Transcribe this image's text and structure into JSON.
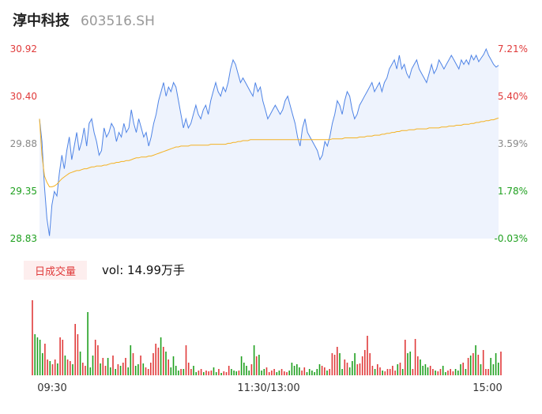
{
  "stock": {
    "name": "淳中科技",
    "code": "603516.SH"
  },
  "colors": {
    "up": "#e03a3a",
    "down": "#1fa01f",
    "neutral": "#888888",
    "price_line": "#4f84e6",
    "avg_line": "#f4b223",
    "fill": "#eef3fd"
  },
  "volume_panel": {
    "badge": "日成交量",
    "text": "vol: 14.99万手"
  },
  "chart_data": [
    {
      "type": "line",
      "name": "intraday-price",
      "y_left_ticks": [
        "30.92",
        "30.40",
        "29.88",
        "29.35",
        "28.83"
      ],
      "y_right_ticks": [
        "7.21%",
        "5.40%",
        "3.59%",
        "1.78%",
        "-0.03%"
      ],
      "ylim": [
        28.83,
        30.92
      ],
      "x_ticks": [
        "09:30",
        "11:30/13:00",
        "15:00"
      ],
      "price": [
        30.15,
        29.9,
        29.4,
        29.05,
        28.86,
        29.2,
        29.35,
        29.3,
        29.55,
        29.75,
        29.6,
        29.8,
        29.95,
        29.7,
        29.85,
        30.0,
        29.8,
        29.9,
        30.05,
        29.85,
        30.1,
        30.15,
        30.0,
        29.9,
        29.75,
        29.8,
        30.05,
        29.95,
        30.0,
        30.1,
        30.05,
        29.9,
        30.0,
        29.95,
        30.1,
        30.0,
        30.05,
        30.25,
        30.1,
        30.0,
        30.15,
        30.05,
        29.95,
        30.0,
        29.85,
        29.95,
        30.1,
        30.2,
        30.35,
        30.45,
        30.55,
        30.4,
        30.5,
        30.45,
        30.55,
        30.5,
        30.35,
        30.2,
        30.05,
        30.15,
        30.05,
        30.1,
        30.2,
        30.3,
        30.2,
        30.15,
        30.25,
        30.3,
        30.2,
        30.35,
        30.45,
        30.55,
        30.45,
        30.4,
        30.5,
        30.45,
        30.55,
        30.7,
        30.8,
        30.75,
        30.65,
        30.55,
        30.6,
        30.55,
        30.5,
        30.45,
        30.4,
        30.55,
        30.45,
        30.5,
        30.35,
        30.25,
        30.15,
        30.2,
        30.25,
        30.3,
        30.25,
        30.2,
        30.25,
        30.35,
        30.4,
        30.3,
        30.2,
        30.1,
        29.95,
        29.85,
        30.05,
        30.15,
        30.0,
        29.95,
        29.9,
        29.85,
        29.8,
        29.7,
        29.75,
        29.9,
        29.85,
        29.95,
        30.1,
        30.2,
        30.35,
        30.3,
        30.2,
        30.35,
        30.45,
        30.4,
        30.25,
        30.15,
        30.2,
        30.3,
        30.35,
        30.4,
        30.45,
        30.5,
        30.55,
        30.45,
        30.5,
        30.55,
        30.45,
        30.55,
        30.6,
        30.7,
        30.75,
        30.8,
        30.7,
        30.85,
        30.7,
        30.75,
        30.65,
        30.6,
        30.7,
        30.75,
        30.8,
        30.7,
        30.65,
        30.6,
        30.55,
        30.65,
        30.75,
        30.65,
        30.7,
        30.8,
        30.75,
        30.7,
        30.75,
        30.8,
        30.85,
        30.8,
        30.75,
        30.7,
        30.8,
        30.75,
        30.8,
        30.75,
        30.85,
        30.8,
        30.85,
        30.78,
        30.82,
        30.86,
        30.92,
        30.85,
        30.8,
        30.75,
        30.72,
        30.74
      ],
      "avg": [
        30.15,
        29.75,
        29.52,
        29.45,
        29.4,
        29.4,
        29.41,
        29.43,
        29.46,
        29.49,
        29.51,
        29.53,
        29.55,
        29.56,
        29.57,
        29.58,
        29.58,
        29.59,
        29.6,
        29.6,
        29.61,
        29.62,
        29.62,
        29.63,
        29.63,
        29.63,
        29.64,
        29.64,
        29.65,
        29.66,
        29.66,
        29.67,
        29.67,
        29.68,
        29.68,
        29.69,
        29.69,
        29.7,
        29.71,
        29.72,
        29.72,
        29.73,
        29.73,
        29.73,
        29.74,
        29.74,
        29.75,
        29.76,
        29.77,
        29.78,
        29.79,
        29.8,
        29.81,
        29.82,
        29.83,
        29.84,
        29.84,
        29.85,
        29.85,
        29.85,
        29.85,
        29.86,
        29.86,
        29.86,
        29.86,
        29.86,
        29.86,
        29.86,
        29.86,
        29.87,
        29.87,
        29.87,
        29.87,
        29.87,
        29.87,
        29.87,
        29.88,
        29.88,
        29.89,
        29.89,
        29.9,
        29.9,
        29.91,
        29.91,
        29.91,
        29.92,
        29.92,
        29.92,
        29.92,
        29.92,
        29.92,
        29.92,
        29.92,
        29.92,
        29.92,
        29.92,
        29.92,
        29.92,
        29.92,
        29.92,
        29.92,
        29.92,
        29.92,
        29.92,
        29.92,
        29.92,
        29.92,
        29.92,
        29.92,
        29.92,
        29.92,
        29.92,
        29.92,
        29.92,
        29.92,
        29.92,
        29.92,
        29.92,
        29.93,
        29.93,
        29.93,
        29.93,
        29.93,
        29.94,
        29.94,
        29.94,
        29.94,
        29.94,
        29.94,
        29.95,
        29.95,
        29.95,
        29.96,
        29.96,
        29.96,
        29.97,
        29.97,
        29.97,
        29.98,
        29.98,
        29.99,
        29.99,
        30.0,
        30.0,
        30.01,
        30.01,
        30.02,
        30.02,
        30.02,
        30.03,
        30.03,
        30.03,
        30.04,
        30.04,
        30.04,
        30.04,
        30.04,
        30.05,
        30.05,
        30.05,
        30.05,
        30.05,
        30.06,
        30.06,
        30.06,
        30.07,
        30.07,
        30.07,
        30.08,
        30.08,
        30.08,
        30.09,
        30.09,
        30.09,
        30.1,
        30.1,
        30.11,
        30.11,
        30.12,
        30.12,
        30.13,
        30.13,
        30.14,
        30.14,
        30.15,
        30.16
      ],
      "volume": [
        95,
        52,
        48,
        45,
        28,
        40,
        20,
        18,
        14,
        20,
        15,
        48,
        45,
        25,
        20,
        18,
        14,
        65,
        52,
        30,
        16,
        12,
        80,
        10,
        25,
        45,
        38,
        15,
        22,
        12,
        22,
        10,
        25,
        8,
        14,
        12,
        16,
        22,
        10,
        38,
        28,
        12,
        14,
        25,
        15,
        10,
        8,
        16,
        28,
        40,
        35,
        48,
        36,
        30,
        20,
        10,
        24,
        12,
        6,
        8,
        8,
        38,
        16,
        8,
        12,
        4,
        6,
        8,
        4,
        6,
        5,
        6,
        10,
        4,
        8,
        3,
        5,
        4,
        12,
        8,
        6,
        5,
        6,
        24,
        16,
        12,
        6,
        14,
        38,
        24,
        26,
        6,
        8,
        10,
        4,
        6,
        8,
        4,
        6,
        8,
        5,
        4,
        6,
        16,
        12,
        14,
        10,
        6,
        10,
        4,
        8,
        6,
        4,
        8,
        14,
        12,
        10,
        6,
        8,
        28,
        26,
        36,
        28,
        8,
        20,
        16,
        10,
        18,
        28,
        14,
        15,
        24,
        32,
        50,
        28,
        12,
        8,
        14,
        10,
        6,
        5,
        8,
        8,
        12,
        6,
        14,
        16,
        8,
        45,
        28,
        30,
        8,
        46,
        24,
        20,
        12,
        14,
        10,
        12,
        8,
        6,
        5,
        8,
        12,
        4,
        6,
        8,
        5,
        8,
        6,
        14,
        16,
        8,
        22,
        25,
        28,
        38,
        26,
        14,
        32,
        8,
        8,
        22,
        14,
        28,
        16,
        30
      ]
    }
  ]
}
